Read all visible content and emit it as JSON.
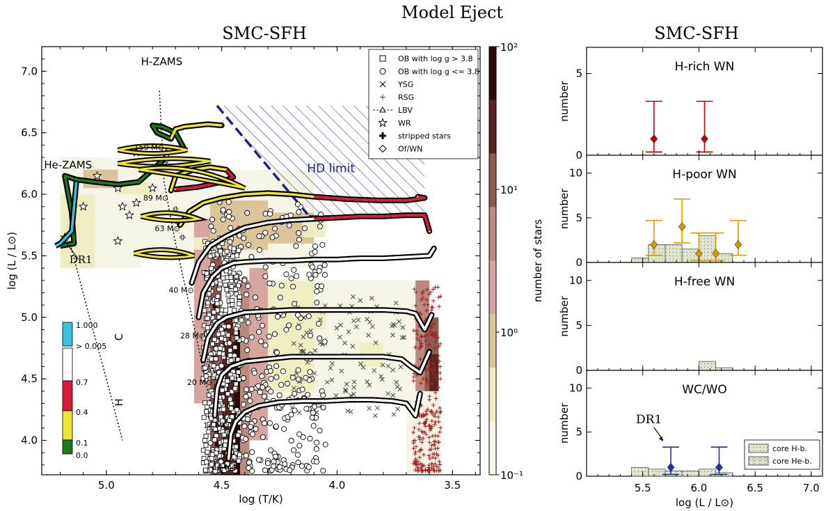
{
  "suptitle": "Model Eject",
  "hrd": {
    "title": "SMC-SFH",
    "xlabel": "log (T/K)",
    "ylabel": "log (L / L⊙)",
    "xlim": [
      5.28,
      3.38
    ],
    "ylim": [
      3.72,
      7.2
    ],
    "xticks": [
      "5.0",
      "4.5",
      "4.0",
      "3.5"
    ],
    "yticks": [
      "4.0",
      "4.5",
      "5.0",
      "5.5",
      "6.0",
      "6.5",
      "7.0"
    ],
    "annotations": {
      "hzams": "H-ZAMS",
      "hezams": "He-ZAMS",
      "dr1": "DR1",
      "hd_limit": "HD limit"
    },
    "mass_labels": [
      "159 M⊙",
      "89 M⊙",
      "63 M⊙",
      "40 M⊙",
      "28 M⊙",
      "20 M⊙",
      "14 M⊙",
      "10 M⊙"
    ],
    "legend": [
      {
        "symbol": "square",
        "label": "OB with log g > 3.8"
      },
      {
        "symbol": "circle",
        "label": "OB with log g <= 3.8"
      },
      {
        "symbol": "x",
        "label": "YSG"
      },
      {
        "symbol": "plus",
        "label": "RSG"
      },
      {
        "symbol": "triangle-dashed",
        "label": "LBV"
      },
      {
        "symbol": "star",
        "label": "WR"
      },
      {
        "symbol": "bold-plus",
        "label": "stripped stars"
      },
      {
        "symbol": "diamond",
        "label": "Of/WN"
      }
    ],
    "colorbar": {
      "label": "number of stars",
      "ticks": [
        "10⁻¹",
        "10⁰",
        "10¹",
        "10²"
      ],
      "range": [
        0.1,
        100
      ],
      "colors": [
        "#f6f4e6",
        "#eeeec2",
        "#dcc49a",
        "#d5a5a0",
        "#b88a80",
        "#8f5a52",
        "#5a2622",
        "#2b0908"
      ]
    },
    "surface_H": {
      "label_H": "H",
      "label_C": "C",
      "ticks": [
        "1.000",
        "> 0.005",
        "0.7",
        "0.4",
        "0.1",
        "0.0"
      ],
      "colors": {
        "cyan": "#36c5dd",
        "white": "#ffffff",
        "red": "#d81b3c",
        "yellow": "#f0e43a",
        "green": "#1f7a1f"
      }
    },
    "tracks": [
      {
        "mass": 159,
        "x": [
          4.66,
          4.7,
          4.76,
          4.8,
          4.78,
          4.72,
          4.7,
          4.66,
          4.56,
          4.5
        ],
        "y": [
          6.36,
          6.5,
          6.55,
          6.56,
          6.5,
          6.45,
          6.53,
          6.55,
          6.57,
          6.56
        ]
      },
      {
        "mass": 89,
        "x": [
          4.72,
          4.7,
          4.62,
          4.55,
          4.48,
          4.45,
          4.5,
          4.6,
          4.7
        ],
        "y": [
          6.03,
          6.15,
          6.2,
          6.22,
          6.2,
          6.14,
          6.1,
          6.06,
          6.04
        ]
      },
      {
        "mass": 63,
        "x": [
          4.68,
          4.64,
          4.58,
          4.5,
          4.4,
          4.3,
          4.2,
          4.1,
          3.95,
          3.82,
          3.7,
          3.62,
          3.65
        ],
        "y": [
          5.75,
          5.86,
          5.93,
          5.97,
          6.0,
          6.01,
          6.0,
          5.98,
          5.96,
          5.95,
          5.95,
          5.97,
          5.98
        ]
      },
      {
        "mass": 40,
        "x": [
          4.63,
          4.6,
          4.55,
          4.48,
          4.4,
          4.3,
          4.2,
          4.1,
          4.0,
          3.9,
          3.8,
          3.7,
          3.62,
          3.6
        ],
        "y": [
          5.28,
          5.45,
          5.58,
          5.66,
          5.73,
          5.77,
          5.79,
          5.8,
          5.81,
          5.82,
          5.82,
          5.83,
          5.83,
          5.7
        ]
      },
      {
        "mass": 28,
        "x": [
          4.6,
          4.58,
          4.54,
          4.5,
          4.45,
          4.4,
          4.3,
          4.2,
          4.1,
          4.0,
          3.9,
          3.8,
          3.7,
          3.6,
          3.58
        ],
        "y": [
          5.0,
          5.2,
          5.33,
          5.4,
          5.44,
          5.45,
          5.46,
          5.46,
          5.47,
          5.47,
          5.48,
          5.48,
          5.49,
          5.5,
          5.56
        ]
      },
      {
        "mass": 20,
        "x": [
          4.58,
          4.56,
          4.52,
          4.48,
          4.4,
          4.3,
          4.2,
          4.1,
          4.0,
          3.9,
          3.8,
          3.7,
          3.66,
          3.62,
          3.59
        ],
        "y": [
          4.65,
          4.83,
          4.95,
          5.0,
          5.04,
          5.05,
          5.06,
          5.06,
          5.06,
          5.06,
          5.06,
          5.05,
          5.03,
          4.9,
          5.02
        ]
      },
      {
        "mass": 14,
        "x": [
          4.53,
          4.52,
          4.5,
          4.46,
          4.4,
          4.3,
          4.2,
          4.1,
          4.0,
          3.9,
          3.8,
          3.72,
          3.68,
          3.64,
          3.6
        ],
        "y": [
          4.2,
          4.42,
          4.53,
          4.6,
          4.64,
          4.66,
          4.68,
          4.68,
          4.68,
          4.68,
          4.68,
          4.66,
          4.6,
          4.55,
          4.72
        ]
      },
      {
        "mass": 10,
        "x": [
          4.47,
          4.46,
          4.44,
          4.4,
          4.34,
          4.25,
          4.15,
          4.05,
          3.95,
          3.85,
          3.76,
          3.7,
          3.66,
          3.64
        ],
        "y": [
          3.85,
          4.05,
          4.15,
          4.23,
          4.28,
          4.31,
          4.32,
          4.32,
          4.33,
          4.33,
          4.32,
          4.3,
          4.2,
          4.38
        ]
      }
    ]
  },
  "right": {
    "title": "SMC-SFH",
    "xlabel": "log (L / L⊙)",
    "xlim": [
      5.0,
      7.1
    ],
    "xticks": [
      "5.5",
      "6.0",
      "6.5",
      "7.0"
    ],
    "ylabel": "number",
    "dr1_label": "DR1",
    "legend": [
      "core H-b.",
      "core He-b."
    ],
    "panels": [
      {
        "name": "H-rich WN",
        "ylim": [
          0,
          6.6
        ],
        "yticks": [
          "0",
          "5"
        ],
        "color": "#c00000",
        "bars_hb": [],
        "bars_heb": [],
        "points": [
          {
            "x": 5.6,
            "y": 1,
            "lo": 0.2,
            "hi": 3.3
          },
          {
            "x": 6.05,
            "y": 1,
            "lo": 0.2,
            "hi": 3.3
          }
        ]
      },
      {
        "name": "H-poor WN",
        "ylim": [
          0,
          12
        ],
        "yticks": [
          "0",
          "5",
          "10"
        ],
        "color": "#d79b00",
        "bars_hb": [
          {
            "x0": 5.4,
            "x1": 5.55,
            "v": 0.5
          },
          {
            "x0": 5.55,
            "x1": 5.7,
            "v": 2
          },
          {
            "x0": 5.7,
            "x1": 5.85,
            "v": 2
          },
          {
            "x0": 5.85,
            "x1": 6.0,
            "v": 1.5
          },
          {
            "x0": 6.0,
            "x1": 6.15,
            "v": 3
          },
          {
            "x0": 6.15,
            "x1": 6.3,
            "v": 1
          }
        ],
        "bars_heb": [],
        "points": [
          {
            "x": 5.6,
            "y": 2,
            "lo": 0.8,
            "hi": 4.7
          },
          {
            "x": 5.85,
            "y": 4,
            "lo": 2.2,
            "hi": 7.1
          },
          {
            "x": 6.0,
            "y": 1,
            "lo": 0.2,
            "hi": 3.3
          },
          {
            "x": 6.15,
            "y": 1,
            "lo": 0.2,
            "hi": 3.3
          },
          {
            "x": 6.35,
            "y": 2,
            "lo": 0.8,
            "hi": 4.7
          }
        ]
      },
      {
        "name": "H-free WN",
        "ylim": [
          0,
          12
        ],
        "yticks": [
          "0",
          "5",
          "10"
        ],
        "color": "#d79b00",
        "bars_hb": [
          {
            "x0": 6.0,
            "x1": 6.15,
            "v": 1
          },
          {
            "x0": 6.15,
            "x1": 6.3,
            "v": 0.3
          }
        ],
        "bars_heb": [],
        "points": []
      },
      {
        "name": "WC/WO",
        "ylim": [
          0,
          12
        ],
        "yticks": [
          "0",
          "5",
          "10"
        ],
        "color": "#1f2fa8",
        "bars_hb": [
          {
            "x0": 5.4,
            "x1": 5.55,
            "v": 1
          },
          {
            "x0": 5.55,
            "x1": 5.7,
            "v": 0.8
          },
          {
            "x0": 5.85,
            "x1": 6.0,
            "v": 0.6
          },
          {
            "x0": 6.0,
            "x1": 6.15,
            "v": 0.8
          },
          {
            "x0": 6.15,
            "x1": 6.3,
            "v": 0.4
          }
        ],
        "bars_heb": [
          {
            "x0": 5.7,
            "x1": 5.85,
            "v": 0.6
          }
        ],
        "points": [
          {
            "x": 5.75,
            "y": 1,
            "lo": 0.2,
            "hi": 3.3
          },
          {
            "x": 6.18,
            "y": 1,
            "lo": 0.2,
            "hi": 3.3
          }
        ]
      }
    ]
  }
}
